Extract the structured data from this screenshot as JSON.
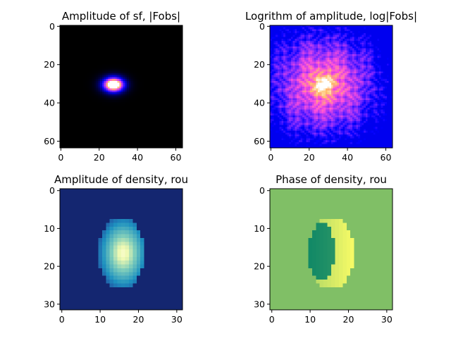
{
  "chart_data": [
    {
      "type": "heatmap",
      "title": "Amplitude of sf, |Fobs|",
      "colormap": "gnuplot2",
      "shape": [
        64,
        64
      ],
      "xlim": [
        0,
        64
      ],
      "ylim": [
        64,
        0
      ],
      "x_ticks": [
        0,
        20,
        40,
        60
      ],
      "y_ticks": [
        0,
        20,
        40,
        60
      ],
      "x_tick_labels": [
        "0",
        "20",
        "40",
        "60"
      ],
      "y_tick_labels": [
        "0",
        "20",
        "40",
        "60"
      ],
      "features": {
        "peak_center": [
          28,
          31
        ],
        "background": "black"
      }
    },
    {
      "type": "heatmap",
      "title": "Logrithm of amplitude, log|Fobs|",
      "colormap": "gnuplot2",
      "shape": [
        64,
        64
      ],
      "xlim": [
        0,
        64
      ],
      "ylim": [
        64,
        0
      ],
      "x_ticks": [
        0,
        20,
        40,
        60
      ],
      "y_ticks": [
        0,
        20,
        40,
        60
      ],
      "x_tick_labels": [
        "0",
        "20",
        "40",
        "60"
      ],
      "y_tick_labels": [
        "0",
        "20",
        "40",
        "60"
      ],
      "features": {
        "peak_center": [
          28,
          31
        ],
        "background": "blue"
      }
    },
    {
      "type": "heatmap",
      "title": "Amplitude of density, rou",
      "colormap": "YlGnBu",
      "shape": [
        32,
        32
      ],
      "xlim": [
        0,
        32
      ],
      "ylim": [
        32,
        0
      ],
      "x_ticks": [
        0,
        10,
        20,
        30
      ],
      "y_ticks": [
        0,
        10,
        20,
        30
      ],
      "x_tick_labels": [
        "0",
        "10",
        "20",
        "30"
      ],
      "y_tick_labels": [
        "0",
        "10",
        "20",
        "30"
      ],
      "features": {
        "object_center": [
          16,
          16
        ],
        "object_size": [
          12,
          18
        ]
      }
    },
    {
      "type": "heatmap",
      "title": "Phase of density, rou",
      "colormap": "summer",
      "shape": [
        32,
        32
      ],
      "xlim": [
        0,
        32
      ],
      "ylim": [
        32,
        0
      ],
      "x_ticks": [
        0,
        10,
        20,
        30
      ],
      "y_ticks": [
        0,
        10,
        20,
        30
      ],
      "x_tick_labels": [
        "0",
        "10",
        "20",
        "30"
      ],
      "y_tick_labels": [
        "0",
        "10",
        "20",
        "30"
      ],
      "features": {
        "object_center": [
          16,
          16
        ],
        "object_size": [
          12,
          18
        ]
      }
    }
  ]
}
